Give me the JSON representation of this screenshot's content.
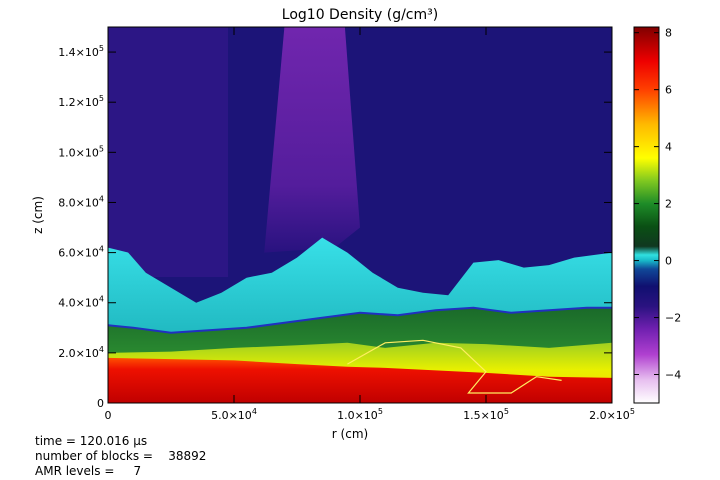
{
  "chart_data": {
    "type": "heatmap",
    "title": "Log10 Density (g/cm³)",
    "xlabel": "r (cm)",
    "ylabel": "z (cm)",
    "xlim": [
      0,
      200000
    ],
    "ylim": [
      0,
      150000
    ],
    "x_ticks": [
      {
        "value": 0,
        "label": "0",
        "sup": ""
      },
      {
        "value": 50000,
        "label": "5.0×10",
        "sup": "4"
      },
      {
        "value": 100000,
        "label": "1.0×10",
        "sup": "5"
      },
      {
        "value": 150000,
        "label": "1.5×10",
        "sup": "5"
      },
      {
        "value": 200000,
        "label": "2.0×10",
        "sup": "5"
      }
    ],
    "y_ticks": [
      {
        "value": 0,
        "label": "0",
        "sup": ""
      },
      {
        "value": 20000,
        "label": "2.0×10",
        "sup": "4"
      },
      {
        "value": 40000,
        "label": "4.0×10",
        "sup": "4"
      },
      {
        "value": 60000,
        "label": "6.0×10",
        "sup": "4"
      },
      {
        "value": 80000,
        "label": "8.0×10",
        "sup": "4"
      },
      {
        "value": 100000,
        "label": "1.0×10",
        "sup": "5"
      },
      {
        "value": 120000,
        "label": "1.2×10",
        "sup": "5"
      },
      {
        "value": 140000,
        "label": "1.4×10",
        "sup": "5"
      }
    ],
    "colorbar": {
      "range": [
        -5,
        8.2
      ],
      "ticks": [
        -4,
        -2,
        0,
        2,
        4,
        6,
        8
      ],
      "tick_labels": [
        "−4",
        "−2",
        "0",
        "2",
        "4",
        "6",
        "8"
      ],
      "colormap": [
        {
          "v": -5.0,
          "color": "#ffffff"
        },
        {
          "v": -4.2,
          "color": "#e8c0f0"
        },
        {
          "v": -3.3,
          "color": "#b040d0"
        },
        {
          "v": -2.4,
          "color": "#7020b0"
        },
        {
          "v": -1.6,
          "color": "#2a1280"
        },
        {
          "v": -0.9,
          "color": "#101070"
        },
        {
          "v": -0.3,
          "color": "#104898"
        },
        {
          "v": 0.0,
          "color": "#18b8c8"
        },
        {
          "v": 0.2,
          "color": "#30e0e0"
        },
        {
          "v": 0.5,
          "color": "#103820"
        },
        {
          "v": 1.2,
          "color": "#0a5014"
        },
        {
          "v": 2.0,
          "color": "#1e8c28"
        },
        {
          "v": 2.8,
          "color": "#80c820"
        },
        {
          "v": 3.6,
          "color": "#ffff00"
        },
        {
          "v": 4.8,
          "color": "#ffb800"
        },
        {
          "v": 6.0,
          "color": "#ff4000"
        },
        {
          "v": 7.0,
          "color": "#ee0000"
        },
        {
          "v": 8.2,
          "color": "#800000"
        }
      ]
    },
    "layers": [
      {
        "name": "dense-base",
        "log_density": 7.3,
        "top": [
          [
            0,
            18000
          ],
          [
            25000,
            17500
          ],
          [
            50000,
            17000
          ],
          [
            75000,
            15500
          ],
          [
            95000,
            14500
          ],
          [
            110000,
            14000
          ],
          [
            130000,
            13000
          ],
          [
            150000,
            12000
          ],
          [
            175000,
            10500
          ],
          [
            200000,
            10000
          ]
        ]
      },
      {
        "name": "yellow-band",
        "log_density": 3.8,
        "top": [
          [
            0,
            20000
          ],
          [
            25000,
            20500
          ],
          [
            50000,
            22000
          ],
          [
            75000,
            23000
          ],
          [
            95000,
            24000
          ],
          [
            110000,
            22000
          ],
          [
            130000,
            24000
          ],
          [
            150000,
            23500
          ],
          [
            175000,
            22000
          ],
          [
            200000,
            24000
          ]
        ]
      },
      {
        "name": "green-band",
        "log_density": 1.6,
        "top": [
          [
            0,
            31000
          ],
          [
            10000,
            30000
          ],
          [
            25000,
            28000
          ],
          [
            40000,
            29000
          ],
          [
            55000,
            30000
          ],
          [
            70000,
            32000
          ],
          [
            85000,
            34000
          ],
          [
            100000,
            36000
          ],
          [
            115000,
            35000
          ],
          [
            130000,
            37000
          ],
          [
            145000,
            38000
          ],
          [
            160000,
            36000
          ],
          [
            175000,
            37000
          ],
          [
            190000,
            38000
          ],
          [
            200000,
            38000
          ]
        ]
      },
      {
        "name": "cyan-front",
        "log_density": 0.2,
        "top": [
          [
            0,
            62000
          ],
          [
            8000,
            60000
          ],
          [
            15000,
            52000
          ],
          [
            25000,
            46000
          ],
          [
            35000,
            40000
          ],
          [
            45000,
            44000
          ],
          [
            55000,
            50000
          ],
          [
            65000,
            52000
          ],
          [
            75000,
            58000
          ],
          [
            85000,
            66000
          ],
          [
            95000,
            60000
          ],
          [
            105000,
            52000
          ],
          [
            115000,
            46000
          ],
          [
            125000,
            44000
          ],
          [
            135000,
            43000
          ],
          [
            145000,
            56000
          ],
          [
            155000,
            57000
          ],
          [
            165000,
            54000
          ],
          [
            175000,
            55000
          ],
          [
            185000,
            58000
          ],
          [
            200000,
            60000
          ]
        ]
      }
    ],
    "background_log_density": -1.0,
    "plume_log_density": -2.5,
    "annotations": {
      "time_line": "time = 120.016 µs",
      "blocks_line": "number of blocks =    38892",
      "amr_line": "AMR levels =     7"
    }
  }
}
